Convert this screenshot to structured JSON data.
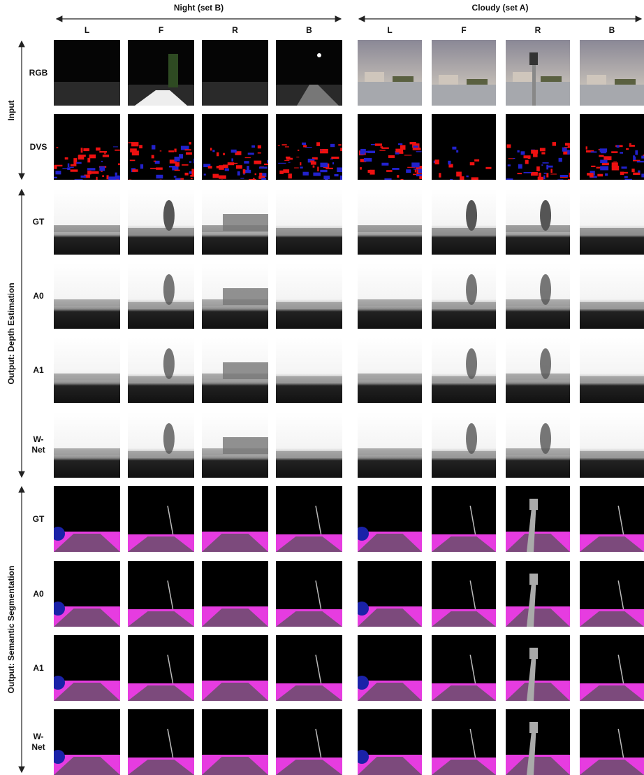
{
  "column_groups": [
    {
      "title": "Night (set B)",
      "columns": [
        "L",
        "F",
        "R",
        "B"
      ]
    },
    {
      "title": "Cloudy (set A)",
      "columns": [
        "L",
        "F",
        "R",
        "B"
      ]
    }
  ],
  "row_groups": [
    {
      "title": "Input",
      "rows": [
        "RGB",
        "DVS"
      ]
    },
    {
      "title": "Output: Depth Estimation",
      "rows": [
        "GT",
        "A0",
        "A1",
        "W-Net"
      ]
    },
    {
      "title": "Output: Semantic Segmentation",
      "rows": [
        "GT",
        "A0",
        "A1",
        "W-Net"
      ]
    }
  ]
}
